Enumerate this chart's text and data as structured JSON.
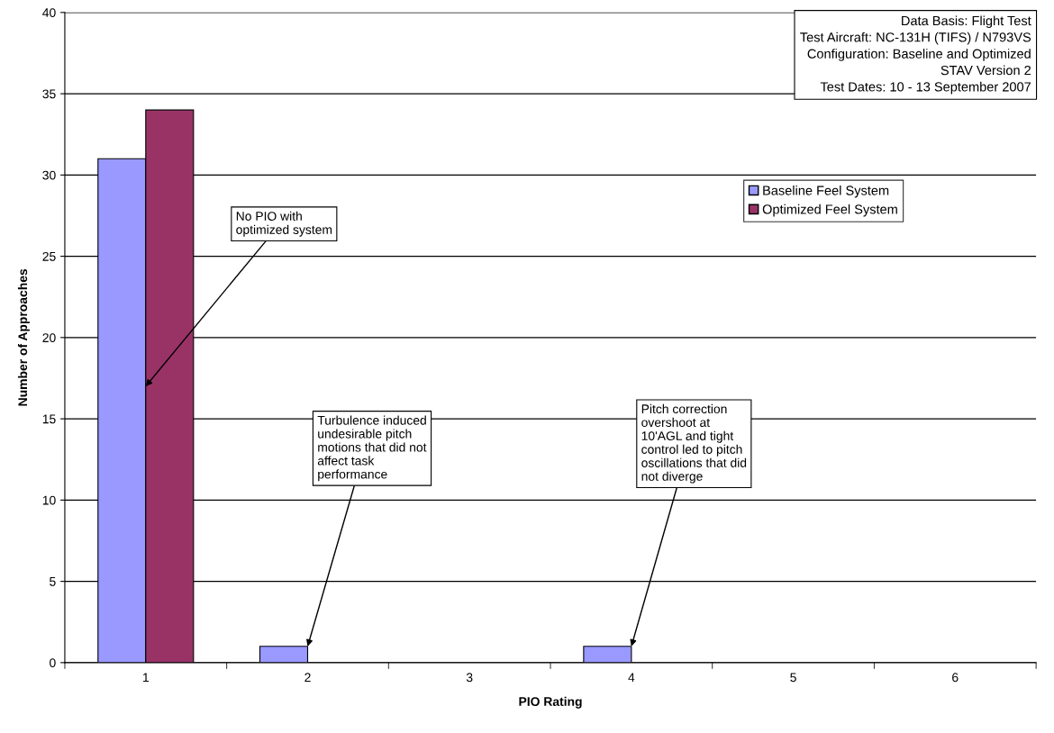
{
  "chart_data": {
    "type": "bar",
    "xlabel": "PIO Rating",
    "ylabel": "Number of Approaches",
    "categories": [
      "1",
      "2",
      "3",
      "4",
      "5",
      "6"
    ],
    "series": [
      {
        "name": "Baseline Feel System",
        "color": "#9999ff",
        "values": [
          31,
          1,
          0,
          1,
          0,
          0
        ]
      },
      {
        "name": "Optimized Feel System",
        "color": "#993366",
        "values": [
          34,
          0,
          0,
          0,
          0,
          0
        ]
      }
    ],
    "ylim": [
      0,
      40
    ],
    "yticks": [
      0,
      5,
      10,
      15,
      20,
      25,
      30,
      35,
      40
    ],
    "grid": "y",
    "legend": "right",
    "annotations": [
      {
        "text": "No PIO with\noptimized system",
        "x": "1",
        "y": 17
      },
      {
        "text": "Turbulence induced\nundesirable pitch\nmotions that did not\naffect task\nperformance",
        "x": "2",
        "y": 1
      },
      {
        "text": "Pitch correction\novershoot at\n10'AGL and tight\ncontrol led to pitch\noscillations that did\nnot diverge",
        "x": "4",
        "y": 1
      },
      "Data Basis: Flight Test\nTest Aircraft: NC-131H (TIFS) / N793VS\nConfiguration: Baseline and Optimized\n                     STAV Version 2\nTest Dates: 10 - 13 September 2007"
    ]
  }
}
